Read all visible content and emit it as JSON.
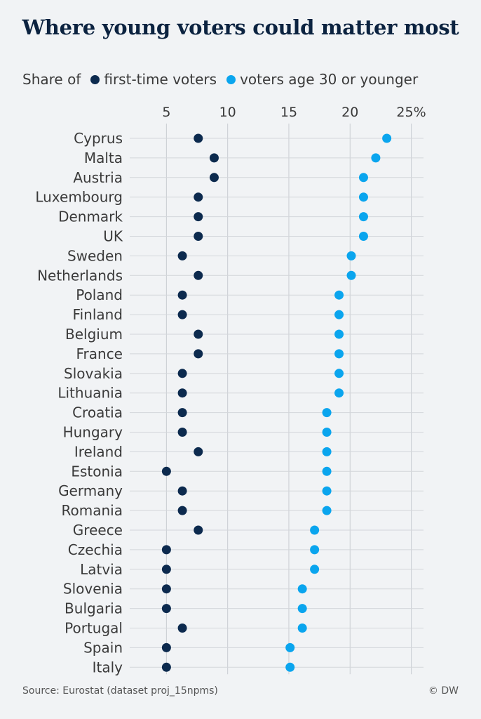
{
  "title": "Where young voters could matter most",
  "legend": {
    "prefix": "Share of",
    "items": [
      {
        "label": "first-time voters",
        "color": "#0c2a4e"
      },
      {
        "label": "voters age 30 or younger",
        "color": "#0aa5ee"
      }
    ]
  },
  "source": "Source: Eurostat (dataset proj_15npms)",
  "credit": "© DW",
  "chart_data": {
    "type": "scatter",
    "orientation": "horizontal-dot-plot",
    "xlim": [
      2,
      26
    ],
    "xticks": [
      5,
      10,
      15,
      20,
      25
    ],
    "xtick_labels": [
      "5",
      "10",
      "15",
      "20",
      "25%"
    ],
    "categories": [
      "Cyprus",
      "Malta",
      "Austria",
      "Luxembourg",
      "Denmark",
      "UK",
      "Sweden",
      "Netherlands",
      "Poland",
      "Finland",
      "Belgium",
      "France",
      "Slovakia",
      "Lithuania",
      "Croatia",
      "Hungary",
      "Ireland",
      "Estonia",
      "Germany",
      "Romania",
      "Greece",
      "Czechia",
      "Latvia",
      "Slovenia",
      "Bulgaria",
      "Portugal",
      "Spain",
      "Italy"
    ],
    "series": [
      {
        "name": "first-time voters",
        "color": "#0c2a4e",
        "values": [
          7.6,
          8.9,
          8.9,
          7.6,
          7.6,
          7.6,
          6.3,
          7.6,
          6.3,
          6.3,
          7.6,
          7.6,
          6.3,
          6.3,
          6.3,
          6.3,
          7.6,
          5.0,
          6.3,
          6.3,
          7.6,
          5.0,
          5.0,
          5.0,
          5.0,
          6.3,
          5.0,
          5.0
        ]
      },
      {
        "name": "voters age 30 or younger",
        "color": "#0aa5ee",
        "values": [
          23.0,
          22.1,
          21.1,
          21.1,
          21.1,
          21.1,
          20.1,
          20.1,
          19.1,
          19.1,
          19.1,
          19.1,
          19.1,
          19.1,
          18.1,
          18.1,
          18.1,
          18.1,
          18.1,
          18.1,
          17.1,
          17.1,
          17.1,
          16.1,
          16.1,
          16.1,
          15.1,
          15.1
        ]
      }
    ],
    "grid": true,
    "legend_position": "top"
  }
}
